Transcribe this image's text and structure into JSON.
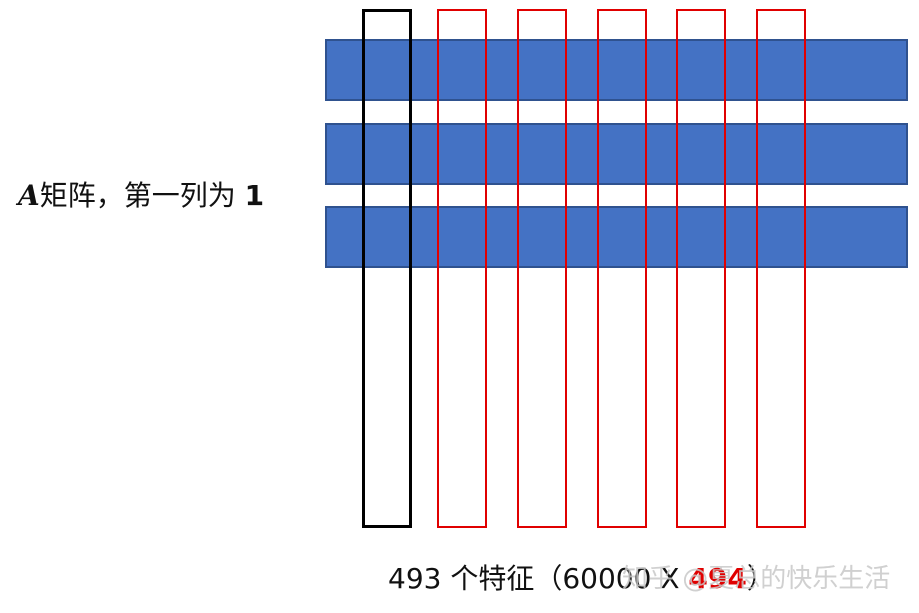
{
  "left_label": {
    "var": "A",
    "text": "矩阵，第一列为 ",
    "num": "1"
  },
  "bottom_caption": {
    "prefix": "493 个特征（60000 X ",
    "highlight": "494",
    "suffix": "）",
    "highlight_color": "#E00000"
  },
  "watermark": "知乎 @夏总的快乐生活",
  "colors": {
    "row_fill": "#4472C4",
    "row_border": "#2F528F",
    "first_column_border": "#000000",
    "feature_column_border": "#E00000"
  }
}
